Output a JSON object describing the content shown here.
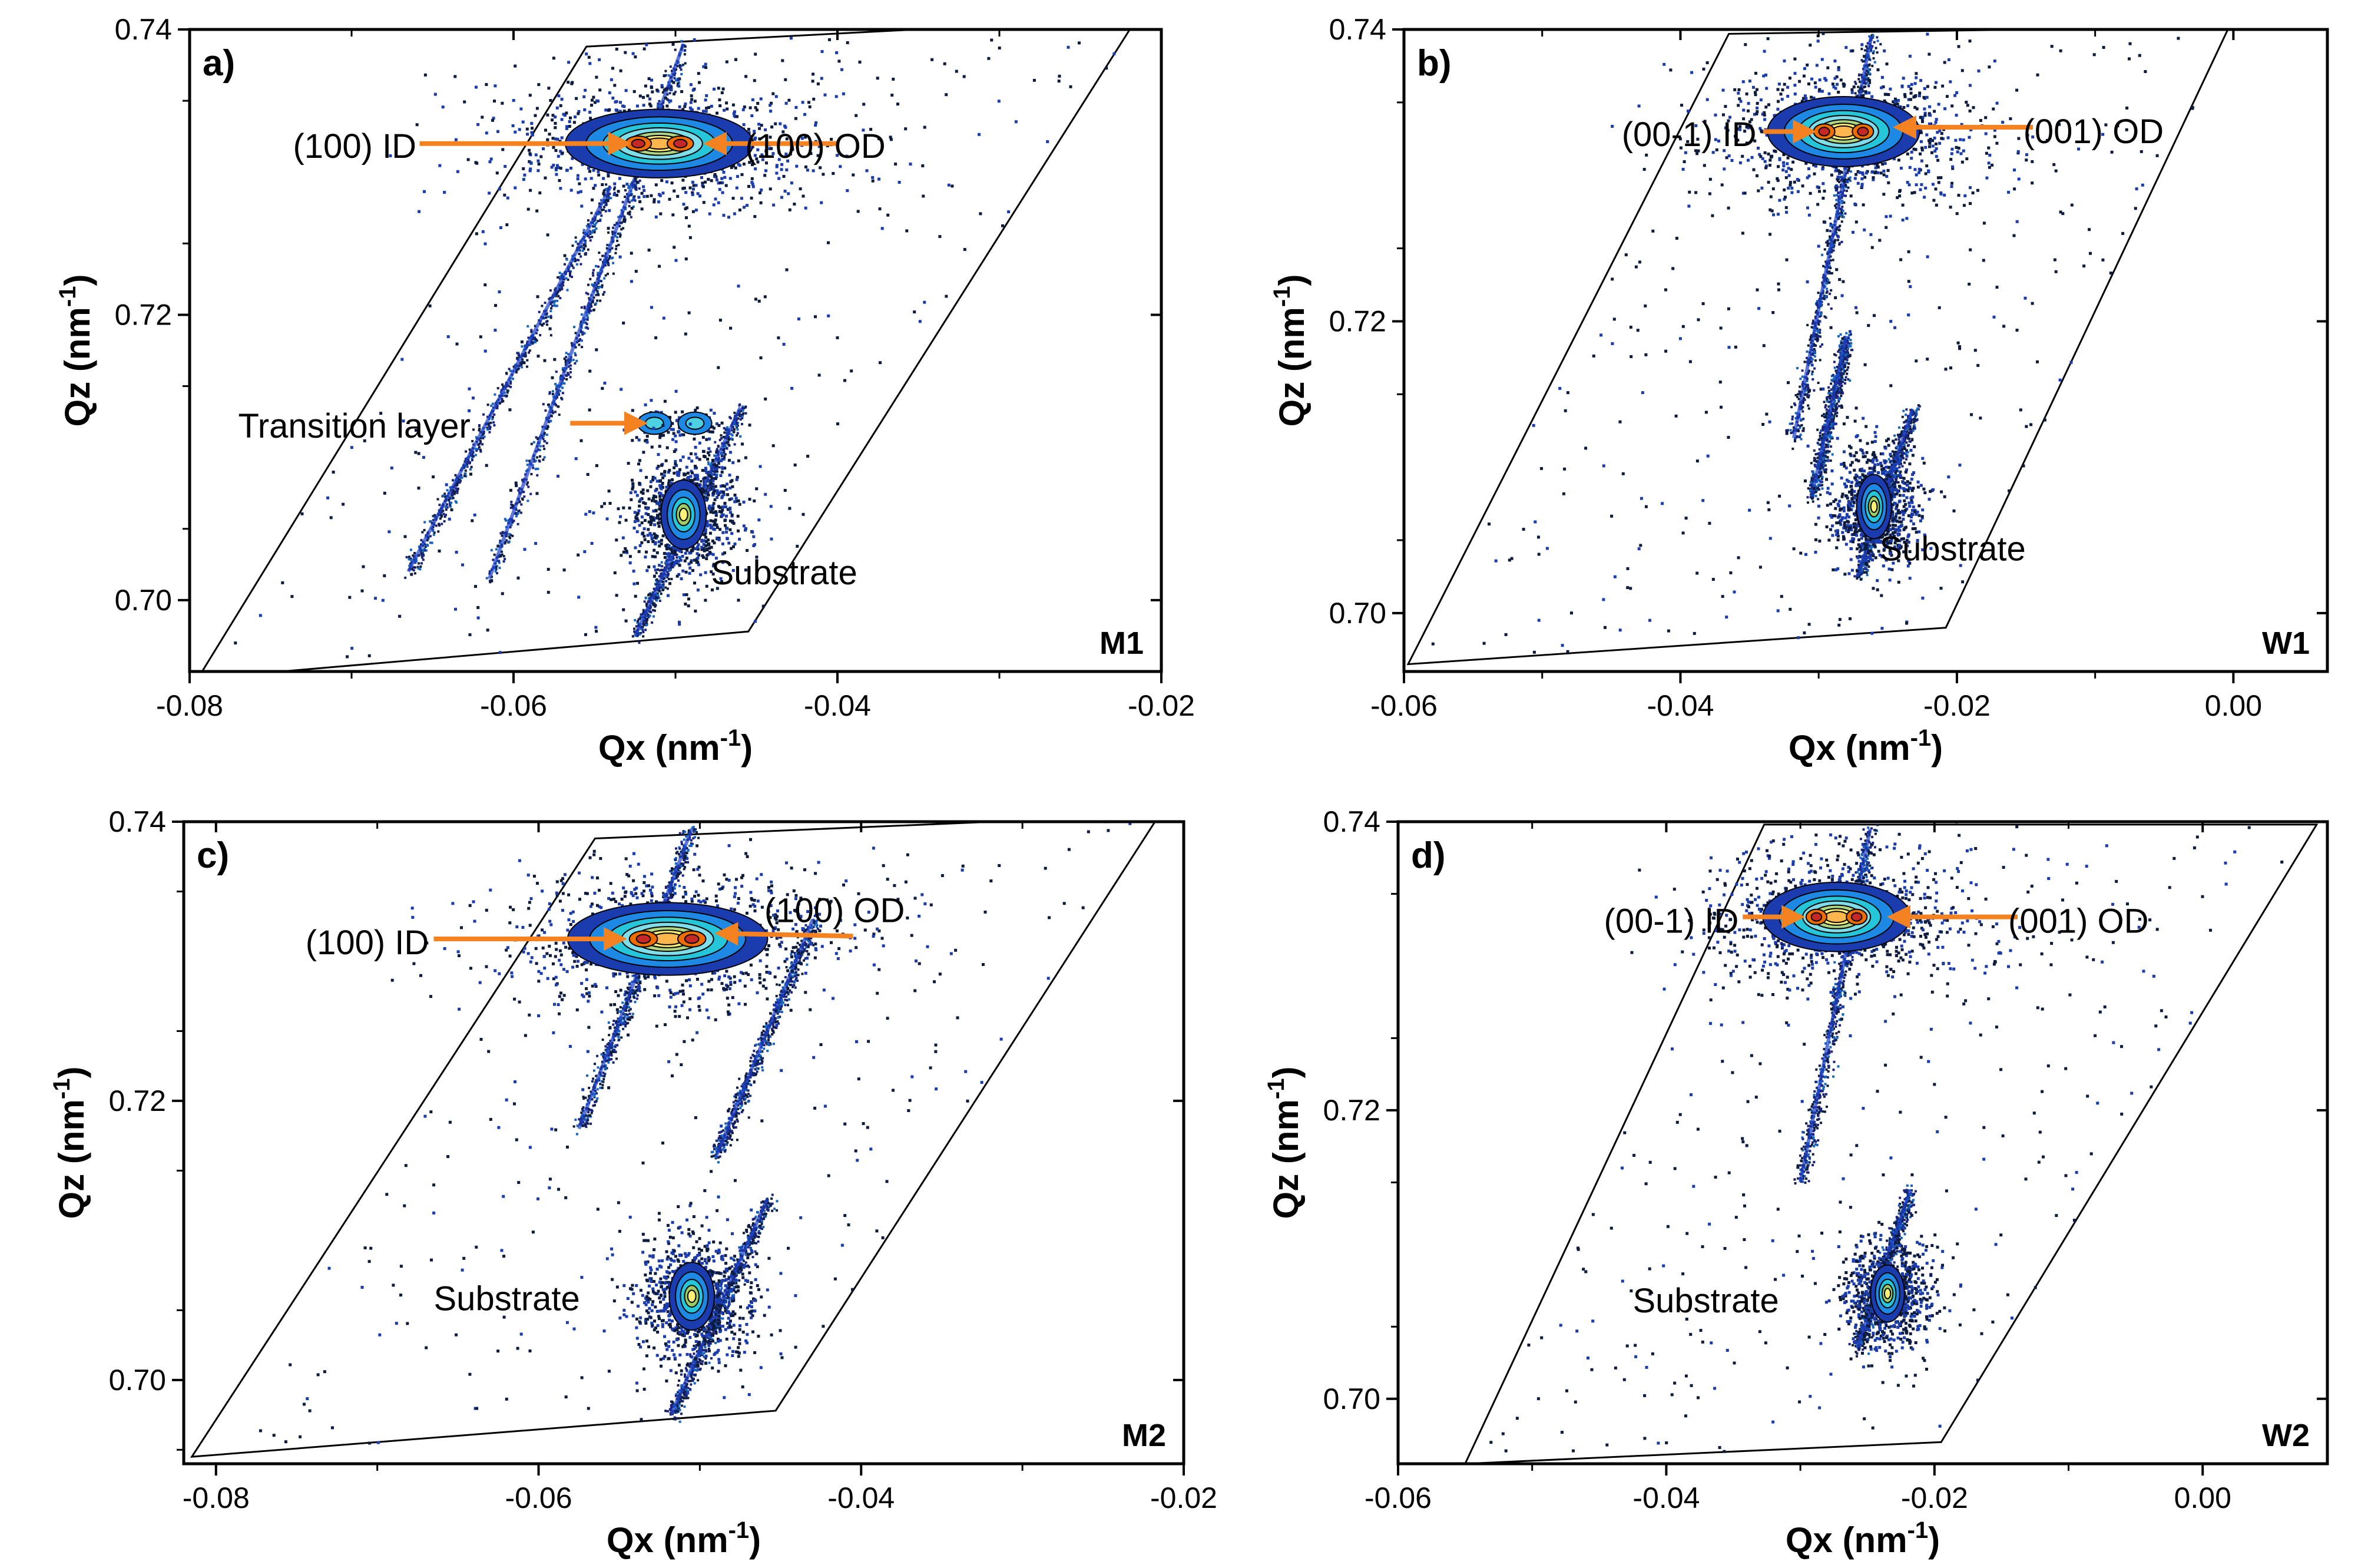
{
  "figure": {
    "colors": {
      "arrow": "#f58220",
      "frame": "#000000",
      "mask": "#000000"
    }
  },
  "chart_data": [
    {
      "type": "heatmap",
      "panel": "a)",
      "sample": "M1",
      "xlabel": "Qx (nm",
      "xlabel_sup": "-1",
      "ylabel": "Qz (nm",
      "ylabel_sup": "-1",
      "xlim": [
        -0.08,
        -0.02
      ],
      "ylim": [
        0.695,
        0.74
      ],
      "xticks": [
        -0.08,
        -0.06,
        -0.04,
        -0.02
      ],
      "xtick_labels": [
        "-0.08",
        "-0.06",
        "-0.04",
        "-0.02"
      ],
      "yticks": [
        0.7,
        0.72,
        0.74
      ],
      "ytick_labels": [
        "0.70",
        "0.72",
        "0.74"
      ],
      "mask": [
        [
          -0.0795,
          0.6945
        ],
        [
          -0.0555,
          0.7388
        ],
        [
          -0.0215,
          0.7408
        ],
        [
          -0.0455,
          0.6978
        ]
      ],
      "streaks": [
        [
          -0.0615,
          0.7015,
          -0.0495,
          0.739
        ],
        [
          -0.0665,
          0.702,
          -0.054,
          0.729
        ],
        [
          -0.0525,
          0.6975,
          -0.046,
          0.7135
        ]
      ],
      "peaks": [
        {
          "x": -0.051,
          "y": 0.732,
          "sx": 0.0058,
          "sy": 0.0024,
          "kind": "double",
          "sep": 0.0026
        },
        {
          "x": -0.0513,
          "y": 0.7124,
          "sx": 0.0008,
          "sy": 0.0006,
          "kind": "small"
        },
        {
          "x": -0.0488,
          "y": 0.7124,
          "sx": 0.0008,
          "sy": 0.0006,
          "kind": "small"
        },
        {
          "x": -0.0495,
          "y": 0.706,
          "sx": 0.002,
          "sy": 0.0022,
          "kind": "substrate"
        }
      ],
      "annotations": [
        {
          "text": "(100) ID",
          "x": -0.066,
          "y": 0.731,
          "anchor": "end",
          "arrow": [
            -0.0658,
            0.732,
            -0.053,
            0.732
          ]
        },
        {
          "text": "(100) OD",
          "x": -0.0457,
          "y": 0.731,
          "anchor": "start",
          "arrow": [
            -0.04,
            0.732,
            -0.048,
            0.732
          ]
        },
        {
          "text": "Transition layer",
          "x": -0.077,
          "y": 0.7114,
          "anchor": "start",
          "arrow": [
            -0.0565,
            0.7124,
            -0.052,
            0.7124
          ]
        },
        {
          "text": "Substrate",
          "x": -0.0478,
          "y": 0.7011,
          "anchor": "start"
        }
      ]
    },
    {
      "type": "heatmap",
      "panel": "b)",
      "sample": "W1",
      "xlabel": "Qx (nm",
      "xlabel_sup": "-1",
      "ylabel": "Qz (nm",
      "ylabel_sup": "-1",
      "xlim": [
        -0.06,
        0.0068
      ],
      "ylim": [
        0.696,
        0.74
      ],
      "xticks": [
        -0.06,
        -0.04,
        -0.02,
        0.0
      ],
      "xtick_labels": [
        "-0.06",
        "-0.04",
        "-0.02",
        "0.00"
      ],
      "yticks": [
        0.7,
        0.72,
        0.74
      ],
      "ytick_labels": [
        "0.70",
        "0.72",
        "0.74"
      ],
      "mask": [
        [
          -0.0597,
          0.6965
        ],
        [
          -0.0365,
          0.7397
        ],
        [
          -0.0003,
          0.7402
        ],
        [
          -0.0208,
          0.699
        ]
      ],
      "streaks": [
        [
          -0.0318,
          0.712,
          -0.0262,
          0.7395
        ],
        [
          -0.0305,
          0.708,
          -0.028,
          0.719
        ],
        [
          -0.0272,
          0.7025,
          -0.0232,
          0.714
        ]
      ],
      "peaks": [
        {
          "x": -0.0282,
          "y": 0.733,
          "sx": 0.0055,
          "sy": 0.0024,
          "kind": "double",
          "sep": 0.0028
        },
        {
          "x": -0.026,
          "y": 0.7073,
          "sx": 0.0018,
          "sy": 0.002,
          "kind": "substrate"
        }
      ],
      "annotations": [
        {
          "text": "(00-1) ID",
          "x": -0.0345,
          "y": 0.732,
          "anchor": "end",
          "arrow": [
            -0.034,
            0.733,
            -0.0305,
            0.733
          ]
        },
        {
          "text": "(001) OD",
          "x": -0.0152,
          "y": 0.7322,
          "anchor": "start",
          "arrow": [
            -0.0145,
            0.7333,
            -0.0243,
            0.7333
          ]
        },
        {
          "text": "Substrate",
          "x": -0.0256,
          "y": 0.7036,
          "anchor": "start"
        }
      ]
    },
    {
      "type": "heatmap",
      "panel": "c)",
      "sample": "M2",
      "xlabel": "Qx (nm",
      "xlabel_sup": "-1",
      "ylabel": "Qz (nm",
      "ylabel_sup": "-1",
      "xlim": [
        -0.082,
        -0.02
      ],
      "ylim": [
        0.694,
        0.74
      ],
      "xticks": [
        -0.08,
        -0.06,
        -0.04,
        -0.02
      ],
      "xtick_labels": [
        "-0.08",
        "-0.06",
        "-0.04",
        "-0.02"
      ],
      "yticks": [
        0.7,
        0.72,
        0.74
      ],
      "ytick_labels": [
        "0.70",
        "0.72",
        "0.74"
      ],
      "mask": [
        [
          -0.0815,
          0.6945
        ],
        [
          -0.0565,
          0.7388
        ],
        [
          -0.0215,
          0.7405
        ],
        [
          -0.0453,
          0.6978
        ]
      ],
      "streaks": [
        [
          -0.0575,
          0.718,
          -0.0505,
          0.7395
        ],
        [
          -0.0518,
          0.6975,
          -0.0458,
          0.713
        ],
        [
          -0.049,
          0.716,
          -0.043,
          0.733
        ]
      ],
      "peaks": [
        {
          "x": -0.052,
          "y": 0.7316,
          "sx": 0.0062,
          "sy": 0.0026,
          "kind": "double",
          "sep": 0.003
        },
        {
          "x": -0.0505,
          "y": 0.706,
          "sx": 0.002,
          "sy": 0.0022,
          "kind": "substrate"
        }
      ],
      "annotations": [
        {
          "text": "(100) ID",
          "x": -0.0668,
          "y": 0.7305,
          "anchor": "end",
          "arrow": [
            -0.0665,
            0.7316,
            -0.0548,
            0.7316
          ]
        },
        {
          "text": "(100) OD",
          "x": -0.046,
          "y": 0.7328,
          "anchor": "start",
          "arrow": [
            -0.0405,
            0.7318,
            -0.0488,
            0.732
          ]
        },
        {
          "text": "Substrate",
          "x": -0.0665,
          "y": 0.705,
          "anchor": "start"
        }
      ]
    },
    {
      "type": "heatmap",
      "panel": "d)",
      "sample": "W2",
      "xlabel": "Qx (nm",
      "xlabel_sup": "-1",
      "ylabel": "Qz (nm",
      "ylabel_sup": "-1",
      "xlim": [
        -0.06,
        0.0093
      ],
      "ylim": [
        0.6955,
        0.74
      ],
      "xticks": [
        -0.06,
        -0.04,
        -0.02,
        0.0
      ],
      "xtick_labels": [
        "-0.06",
        "-0.04",
        "-0.02",
        "0.00"
      ],
      "yticks": [
        0.7,
        0.72,
        0.74
      ],
      "ytick_labels": [
        "0.70",
        "0.72",
        "0.74"
      ],
      "mask": [
        [
          -0.055,
          0.6955
        ],
        [
          -0.0327,
          0.7398
        ],
        [
          0.0085,
          0.7398
        ],
        [
          -0.0195,
          0.697
        ]
      ],
      "streaks": [
        [
          -0.03,
          0.715,
          -0.0248,
          0.7395
        ],
        [
          -0.0258,
          0.7035,
          -0.0218,
          0.7145
        ]
      ],
      "peaks": [
        {
          "x": -0.0273,
          "y": 0.7334,
          "sx": 0.0055,
          "sy": 0.0024,
          "kind": "double",
          "sep": 0.003
        },
        {
          "x": -0.0235,
          "y": 0.7073,
          "sx": 0.0018,
          "sy": 0.0018,
          "kind": "substrate"
        }
      ],
      "annotations": [
        {
          "text": "(00-1) ID",
          "x": -0.0346,
          "y": 0.7323,
          "anchor": "end",
          "arrow": [
            -0.0343,
            0.7334,
            -0.03,
            0.7334
          ]
        },
        {
          "text": "(001) OD",
          "x": -0.0145,
          "y": 0.7323,
          "anchor": "start",
          "arrow": [
            -0.0138,
            0.7334,
            -0.0232,
            0.7334
          ]
        },
        {
          "text": "Substrate",
          "x": -0.0425,
          "y": 0.706,
          "anchor": "start"
        }
      ]
    }
  ]
}
